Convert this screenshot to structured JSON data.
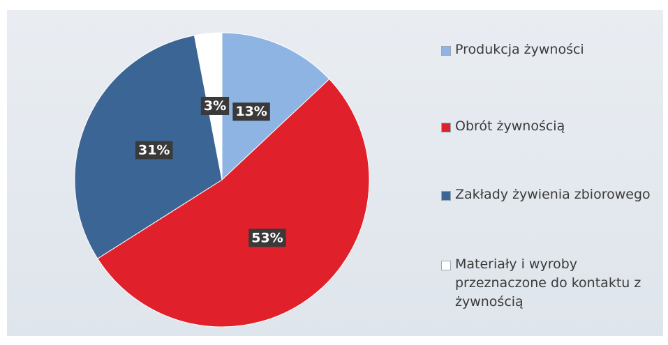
{
  "chart_data": {
    "type": "pie",
    "categories": [
      "Produkcja żywności",
      "Obrót żywnością",
      "Zakłady żywienia zbiorowego",
      "Materiały i wyroby przeznaczone do kontaktu z żywnością"
    ],
    "values": [
      13,
      53,
      31,
      3
    ],
    "value_labels": [
      "13%",
      "53%",
      "31%",
      "3%"
    ],
    "colors": [
      "#8db4e2",
      "#e0202a",
      "#3b6594",
      "#ffffff"
    ]
  }
}
